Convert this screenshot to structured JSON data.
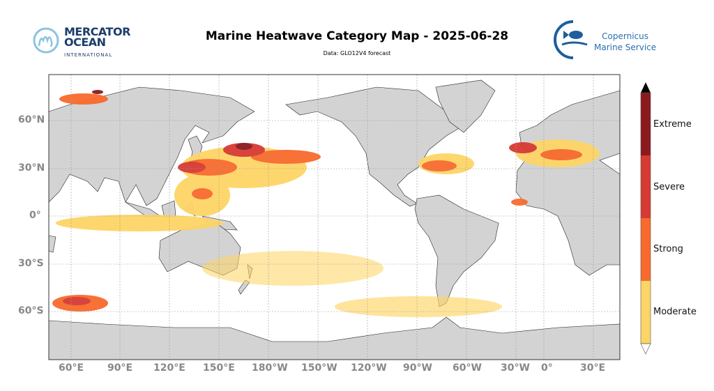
{
  "header": {
    "title": "Marine Heatwave Category Map - 2025-06-28",
    "subtitle": "Data: GLO12V4 forecast"
  },
  "logos": {
    "left": {
      "line1": "MERCATOR",
      "line2": "OCEAN",
      "line3": "INTERNATIONAL"
    },
    "right": {
      "line1": "Copernicus",
      "line2": "Marine Service"
    }
  },
  "map": {
    "lon_ticks": [
      "60°E",
      "90°E",
      "120°E",
      "150°E",
      "180°W",
      "150°W",
      "120°W",
      "90°W",
      "60°W",
      "30°W",
      "0°",
      "30°E"
    ],
    "lat_ticks": [
      "60°N",
      "30°N",
      "0°",
      "30°S",
      "60°S"
    ]
  },
  "colorbar": {
    "categories": [
      {
        "label": "Extreme",
        "color": "#8b1a1e"
      },
      {
        "label": "Severe",
        "color": "#d63a32"
      },
      {
        "label": "Strong",
        "color": "#f86a2c"
      },
      {
        "label": "Moderate",
        "color": "#fdd566"
      }
    ]
  },
  "colors": {
    "land": "#d3d3d3",
    "grid": "#999999"
  }
}
